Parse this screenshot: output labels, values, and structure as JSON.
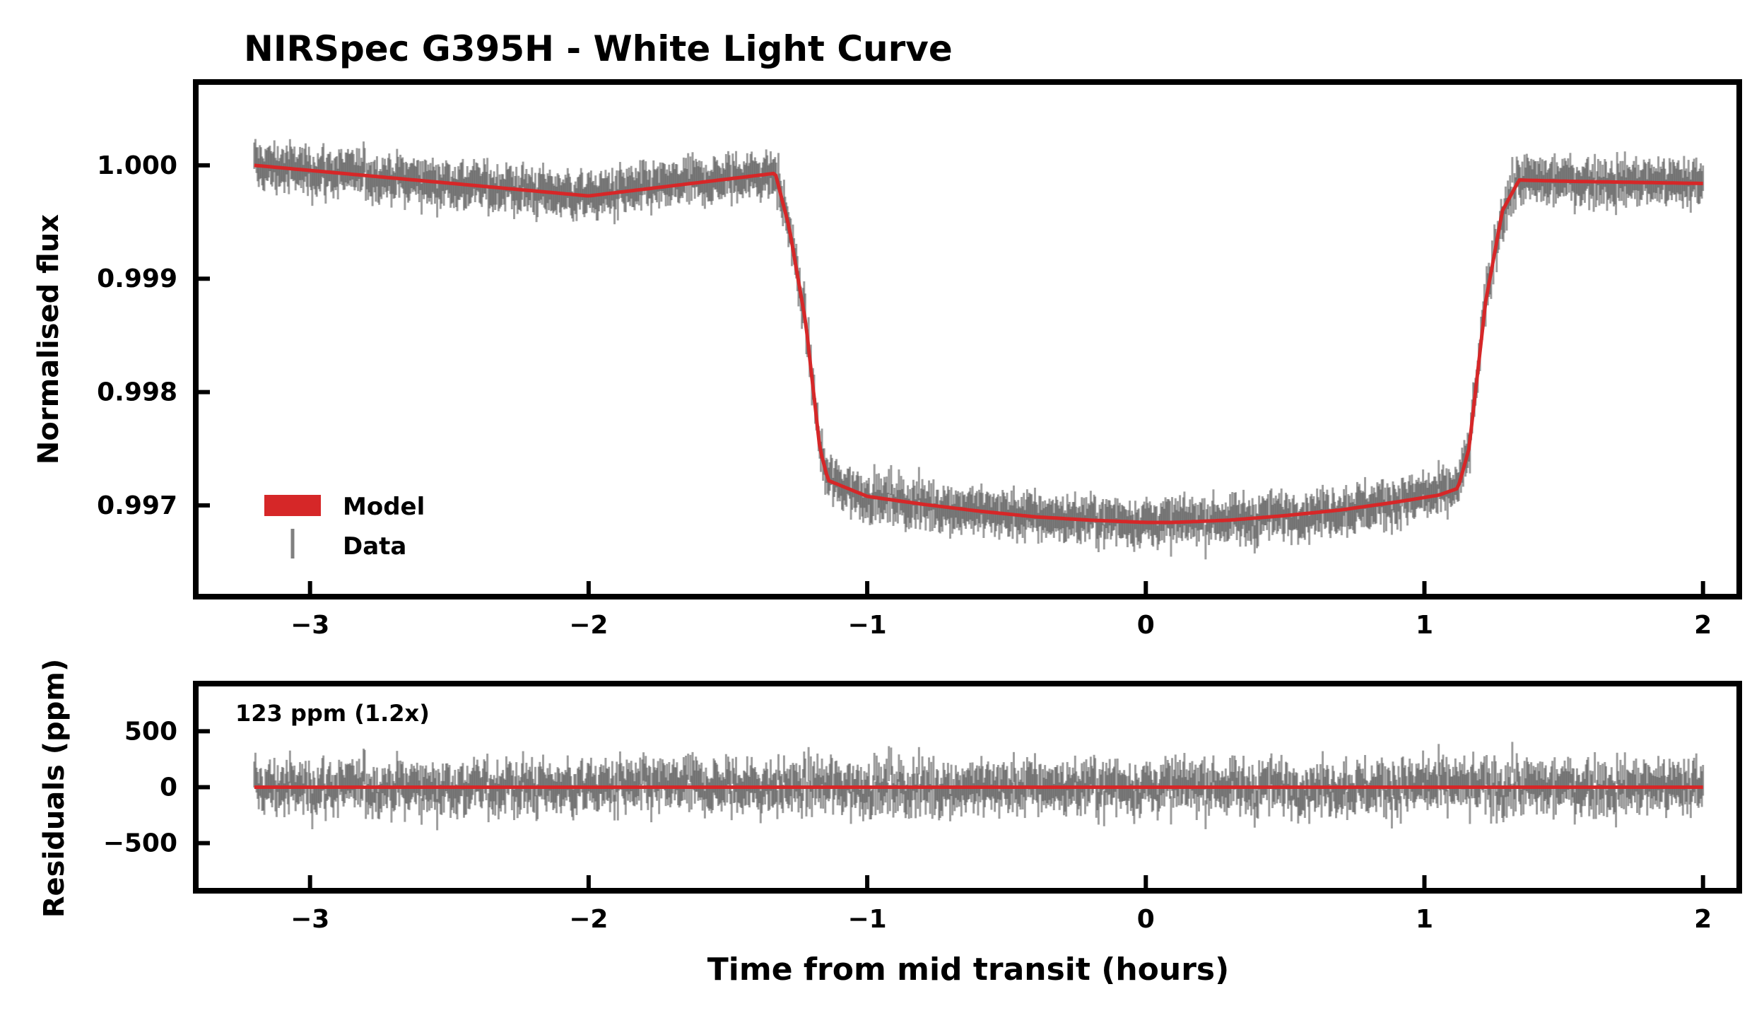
{
  "chart_data": [
    {
      "type": "line",
      "panel": "light-curve",
      "title": "NIRSpec G395H - White Light Curve",
      "xlabel": "",
      "ylabel": "Normalised flux",
      "xlim": [
        -3.4,
        2.12
      ],
      "ylim": [
        0.99622,
        1.00071
      ],
      "x_ticks": [
        -3,
        -2,
        -1,
        0,
        1,
        2
      ],
      "x_tick_labels": [
        "−3",
        "−2",
        "−1",
        "0",
        "1",
        "2"
      ],
      "y_ticks": [
        1.0,
        0.999,
        0.998,
        0.997
      ],
      "y_tick_labels": [
        "1.000",
        "0.999",
        "0.998",
        "0.997"
      ],
      "grid": false,
      "legend": {
        "placement": "lower-left",
        "entries": [
          {
            "label": "Model",
            "kind": "patch",
            "color": "#d62728"
          },
          {
            "label": "Data",
            "kind": "errorbar",
            "color": "#808080"
          }
        ]
      },
      "series": [
        {
          "name": "Model",
          "color": "#d62728",
          "x": [
            -3.2,
            -2.0,
            -1.33,
            -1.28,
            -1.22,
            -1.17,
            -1.14,
            -1.0,
            -0.8,
            -0.6,
            -0.4,
            -0.2,
            0.0,
            0.1,
            0.3,
            0.5,
            0.7,
            0.9,
            1.05,
            1.12,
            1.16,
            1.22,
            1.28,
            1.34,
            1.5,
            2.0
          ],
          "y": [
            1.0,
            0.99973,
            0.99993,
            0.99945,
            0.9986,
            0.9975,
            0.99722,
            0.99708,
            0.99701,
            0.99695,
            0.9969,
            0.99687,
            0.99685,
            0.99685,
            0.99687,
            0.99691,
            0.99696,
            0.99703,
            0.99709,
            0.99715,
            0.9975,
            0.9988,
            0.9996,
            0.99987,
            0.99986,
            0.99984
          ]
        },
        {
          "name": "Data",
          "color": "#555555",
          "points": 1300,
          "x_range": [
            -3.2,
            2.0
          ],
          "scatter": 0.00012
        }
      ]
    },
    {
      "type": "line",
      "panel": "residuals",
      "title": "",
      "xlabel": "Time from mid transit (hours)",
      "ylabel": "Residuals (ppm)",
      "xlim": [
        -3.4,
        2.12
      ],
      "ylim": [
        -900,
        900
      ],
      "x_ticks": [
        -3,
        -2,
        -1,
        0,
        1,
        2
      ],
      "x_tick_labels": [
        "−3",
        "−2",
        "−1",
        "0",
        "1",
        "2"
      ],
      "y_ticks": [
        500,
        0,
        -500
      ],
      "y_tick_labels": [
        "500",
        "0",
        "−500"
      ],
      "grid": false,
      "annotation": "123 ppm (1.2x)",
      "series": [
        {
          "name": "Model",
          "color": "#d62728",
          "x": [
            -3.2,
            2.0
          ],
          "y": [
            0,
            0
          ]
        },
        {
          "name": "Residuals",
          "color": "#555555",
          "points": 1300,
          "x_range": [
            -3.2,
            2.0
          ],
          "scatter": 123
        }
      ]
    }
  ]
}
